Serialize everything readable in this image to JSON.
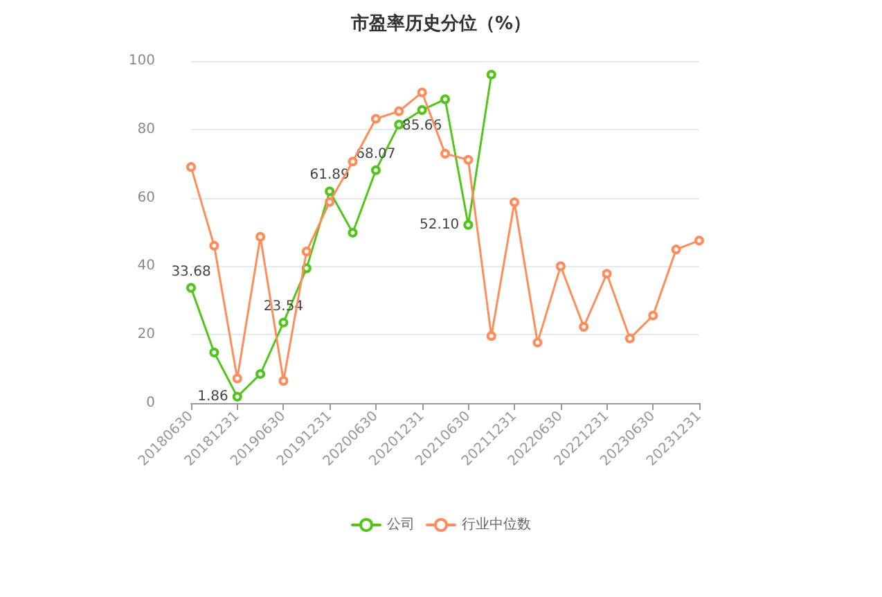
{
  "chart_data": {
    "type": "line",
    "title": "市盈率历史分位（%）",
    "categories": [
      "20180630",
      null,
      "20181231",
      null,
      "20190630",
      null,
      "20191231",
      null,
      "20200630",
      null,
      "20201231",
      null,
      "20210630",
      null,
      "20211231",
      null,
      "20220630",
      null,
      "20221231",
      null,
      "20230630",
      null,
      "20231231"
    ],
    "series": [
      {
        "name": "公司",
        "color": "#52c41a",
        "values": [
          33.68,
          14.8,
          1.86,
          8.5,
          23.54,
          39.4,
          61.89,
          49.8,
          68.07,
          81.4,
          85.66,
          88.8,
          52.1,
          96,
          null,
          null,
          null,
          null,
          null,
          null,
          null,
          null,
          null
        ],
        "value_labels": [
          "33.68",
          null,
          "1.86",
          null,
          "23.54",
          null,
          "61.89",
          null,
          "68.07",
          null,
          "85.66",
          null,
          "52.10",
          null,
          null,
          null,
          null,
          null,
          null,
          null,
          null,
          null,
          null
        ]
      },
      {
        "name": "行业中位数",
        "color": "#ff8c5a",
        "values": [
          69,
          46,
          7.2,
          48.6,
          6.5,
          44.3,
          58.8,
          70.6,
          83.1,
          85.3,
          90.8,
          72.9,
          71.1,
          19.6,
          58.7,
          17.7,
          40,
          22.3,
          37.8,
          18.9,
          25.6,
          44.9,
          47.5
        ]
      }
    ],
    "ylim": [
      0,
      100
    ],
    "yticks": [
      0,
      20,
      40,
      60,
      80,
      100
    ],
    "grid": "y",
    "legend": "bottom",
    "marker": "circle",
    "line_style": "solid"
  }
}
